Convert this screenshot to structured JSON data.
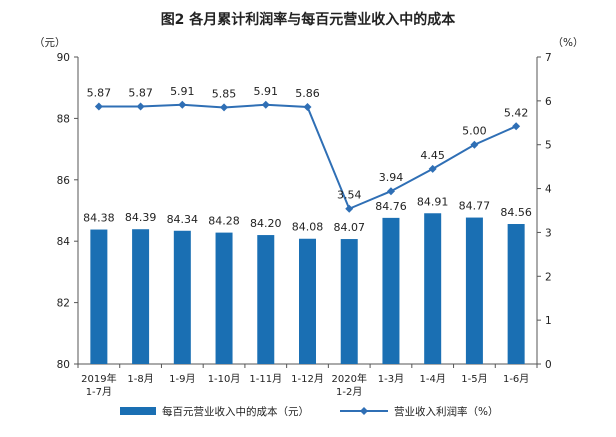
{
  "chart_data": {
    "type": "bar+line",
    "title": "图2  各月累计利润率与每百元营业收入中的成本",
    "left_axis_unit": "（元）",
    "right_axis_unit": "（%）",
    "categories": [
      [
        "2019年",
        "1-7月"
      ],
      [
        "1-8月"
      ],
      [
        "1-9月"
      ],
      [
        "1-10月"
      ],
      [
        "1-11月"
      ],
      [
        "1-12月"
      ],
      [
        "2020年",
        "1-2月"
      ],
      [
        "1-3月"
      ],
      [
        "1-4月"
      ],
      [
        "1-5月"
      ],
      [
        "1-6月"
      ]
    ],
    "y_left": {
      "min": 80,
      "max": 90,
      "ticks": [
        80,
        82,
        84,
        86,
        88,
        90
      ]
    },
    "y_right": {
      "min": 0,
      "max": 7,
      "ticks": [
        0,
        1,
        2,
        3,
        4,
        5,
        6,
        7
      ]
    },
    "series": [
      {
        "name": "每百元营业收入中的成本（元）",
        "type": "bar",
        "axis": "left",
        "color": "#1a6fb3",
        "values": [
          84.38,
          84.39,
          84.34,
          84.28,
          84.2,
          84.08,
          84.07,
          84.76,
          84.91,
          84.77,
          84.56
        ],
        "labels": [
          "84.38",
          "84.39",
          "84.34",
          "84.28",
          "84.20",
          "84.08",
          "84.07",
          "84.76",
          "84.91",
          "84.77",
          "84.56"
        ]
      },
      {
        "name": "营业收入利润率（%）",
        "type": "line",
        "axis": "right",
        "color": "#2f6fb5",
        "values": [
          5.87,
          5.87,
          5.91,
          5.85,
          5.91,
          5.86,
          3.54,
          3.94,
          4.45,
          5.0,
          5.42
        ],
        "labels": [
          "5.87",
          "5.87",
          "5.91",
          "5.85",
          "5.91",
          "5.86",
          "3.54",
          "3.94",
          "4.45",
          "5.00",
          "5.42"
        ]
      }
    ]
  }
}
